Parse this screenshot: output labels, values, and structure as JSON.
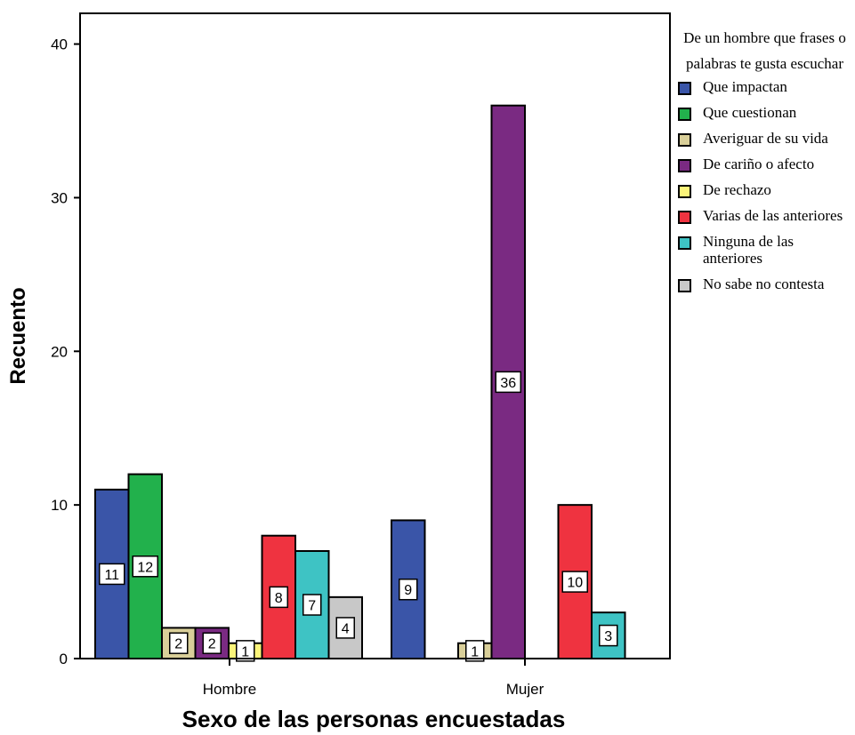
{
  "chart_data": {
    "type": "bar",
    "title": "",
    "xlabel": "Sexo de las personas encuestadas",
    "ylabel": "Recuento",
    "ylim": [
      0,
      42
    ],
    "yticks": [
      0,
      10,
      20,
      30,
      40
    ],
    "categories": [
      "Hombre",
      "Mujer"
    ],
    "legend": {
      "title": "De un hombre que frases o palabras te gusta escuchar",
      "placement": "right"
    },
    "series": [
      {
        "name": "Que impactan",
        "color": "#3a55a8",
        "values": [
          11,
          9
        ]
      },
      {
        "name": "Que cuestionan",
        "color": "#22b14c",
        "values": [
          12,
          null
        ]
      },
      {
        "name": "Averiguar de su vida",
        "color": "#d9cf99",
        "values": [
          2,
          1
        ]
      },
      {
        "name": "De cariño o afecto",
        "color": "#7a2a82",
        "values": [
          2,
          36
        ]
      },
      {
        "name": "De rechazo",
        "color": "#fcf57a",
        "values": [
          1,
          null
        ]
      },
      {
        "name": "Varias de las anteriores",
        "color": "#ef3340",
        "values": [
          8,
          10
        ]
      },
      {
        "name": "Ninguna de las anteriores",
        "color": "#3ec3c4",
        "values": [
          7,
          3
        ]
      },
      {
        "name": "No sabe no contesta",
        "color": "#c8c8c8",
        "values": [
          4,
          null
        ]
      }
    ]
  }
}
